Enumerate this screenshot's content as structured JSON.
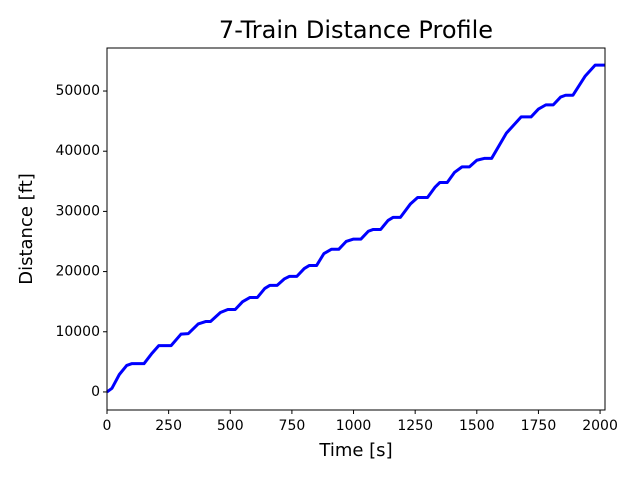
{
  "chart_data": {
    "type": "line",
    "title": "7-Train Distance Profile",
    "x_label": "Time [s]",
    "y_label": "Distance [ft]",
    "x": [
      0,
      20,
      50,
      80,
      100,
      150,
      180,
      210,
      260,
      300,
      330,
      370,
      400,
      420,
      460,
      490,
      520,
      550,
      580,
      610,
      640,
      660,
      690,
      720,
      740,
      770,
      800,
      820,
      850,
      880,
      910,
      940,
      970,
      1000,
      1030,
      1060,
      1080,
      1110,
      1140,
      1160,
      1190,
      1230,
      1260,
      1300,
      1330,
      1350,
      1380,
      1410,
      1440,
      1470,
      1500,
      1530,
      1560,
      1620,
      1680,
      1720,
      1750,
      1780,
      1810,
      1840,
      1860,
      1890,
      1940,
      1980,
      2020
    ],
    "series": [
      {
        "name": "7-Train",
        "color": "#0000ff",
        "values": [
          0,
          600,
          2900,
          4400,
          4700,
          4700,
          6300,
          7700,
          7700,
          9600,
          9700,
          11300,
          11700,
          11700,
          13200,
          13700,
          13700,
          15000,
          15700,
          15700,
          17200,
          17700,
          17700,
          18800,
          19200,
          19200,
          20500,
          21000,
          21000,
          23000,
          23700,
          23700,
          25000,
          25400,
          25400,
          26700,
          27000,
          27000,
          28500,
          29000,
          29000,
          31200,
          32300,
          32300,
          34000,
          34800,
          34800,
          36500,
          37400,
          37400,
          38500,
          38800,
          38800,
          43000,
          45700,
          45700,
          47000,
          47700,
          47700,
          49000,
          49300,
          49300,
          52500,
          54300,
          54300
        ]
      }
    ],
    "xlim": [
      0,
      2020
    ],
    "xticks": [
      0,
      250,
      500,
      750,
      1000,
      1250,
      1500,
      1750,
      2000
    ],
    "ylim": [
      -3000,
      57150
    ],
    "yticks": [
      0,
      10000,
      20000,
      30000,
      40000,
      50000
    ]
  }
}
